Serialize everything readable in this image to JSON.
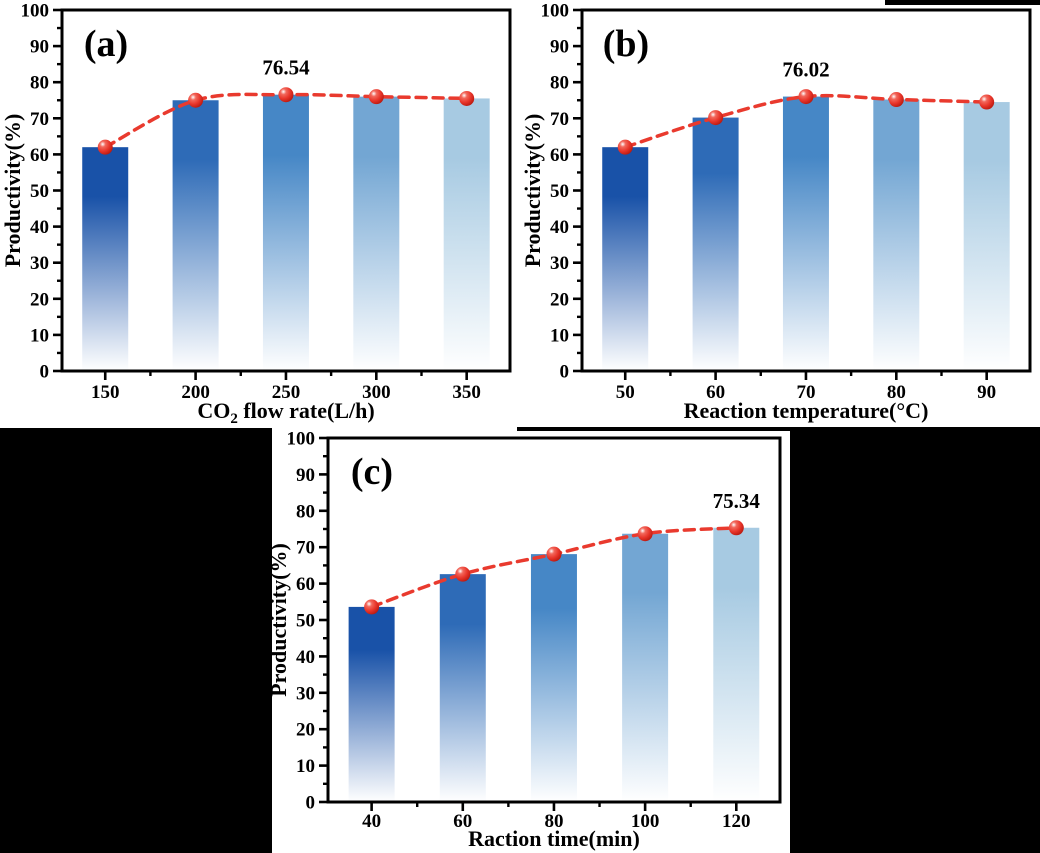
{
  "figure": {
    "background_color": "#000000",
    "panel_background_color": "#ffffff",
    "frame_color": "#000000",
    "text_color": "#000000"
  },
  "colors": {
    "bar_top_colors": [
      "#1952a8",
      "#2e6bb7",
      "#4687c6",
      "#73a6d3",
      "#a7cae2"
    ],
    "bar_bottom_color": "#ffffff",
    "line_color": "#e93a2e",
    "marker_highlight": "#ffffff",
    "marker_mid": "#f2685c",
    "marker_main": "#e8352a",
    "marker_edge": "#a91007"
  },
  "chart_data": [
    {
      "id": "a",
      "type": "bar",
      "panel_label": "(a)",
      "ylabel": "Productivity(%)",
      "xlabel_parts": [
        {
          "text": "CO"
        },
        {
          "text": "2",
          "sub": true
        },
        {
          "text": " flow rate(L/h)"
        }
      ],
      "categories": [
        "150",
        "200",
        "250",
        "300",
        "350"
      ],
      "x": [
        150,
        200,
        250,
        300,
        350
      ],
      "values": [
        62.0,
        75.0,
        76.54,
        76.0,
        75.5
      ],
      "line_overlay_values": [
        62.0,
        75.0,
        76.54,
        76.0,
        75.5
      ],
      "annotation": {
        "text": "76.54",
        "category_index": 2
      },
      "ylim": [
        0,
        100
      ],
      "y_tick_labels": [
        "0",
        "10",
        "20",
        "30",
        "40",
        "50",
        "60",
        "70",
        "80",
        "90",
        "100"
      ],
      "y_minor_step": 5,
      "grid": false,
      "legend": null
    },
    {
      "id": "b",
      "type": "bar",
      "panel_label": "(b)",
      "ylabel": "Productivity(%)",
      "xlabel_parts": [
        {
          "text": "Reaction temperature(°C)"
        }
      ],
      "categories": [
        "50",
        "60",
        "70",
        "80",
        "90"
      ],
      "x": [
        50,
        60,
        70,
        80,
        90
      ],
      "values": [
        62.0,
        70.2,
        76.02,
        75.2,
        74.5
      ],
      "line_overlay_values": [
        62.0,
        70.2,
        76.02,
        75.2,
        74.5
      ],
      "annotation": {
        "text": "76.02",
        "category_index": 2
      },
      "ylim": [
        0,
        100
      ],
      "y_tick_labels": [
        "0",
        "10",
        "20",
        "30",
        "40",
        "50",
        "60",
        "70",
        "80",
        "90",
        "100"
      ],
      "y_minor_step": 5,
      "grid": false,
      "legend": null
    },
    {
      "id": "c",
      "type": "bar",
      "panel_label": "(c)",
      "ylabel": "Productivity(%)",
      "xlabel_parts": [
        {
          "text": "Raction time(min)"
        }
      ],
      "categories": [
        "40",
        "60",
        "80",
        "100",
        "120"
      ],
      "x": [
        40,
        60,
        80,
        100,
        120
      ],
      "values": [
        53.6,
        62.6,
        68.1,
        73.7,
        75.34
      ],
      "line_overlay_values": [
        53.6,
        62.6,
        68.1,
        73.7,
        75.34
      ],
      "annotation": {
        "text": "75.34",
        "category_index": 4
      },
      "ylim": [
        0,
        100
      ],
      "y_tick_labels": [
        "0",
        "10",
        "20",
        "30",
        "40",
        "50",
        "60",
        "70",
        "80",
        "90",
        "100"
      ],
      "y_minor_step": 5,
      "grid": false,
      "legend": null
    }
  ]
}
